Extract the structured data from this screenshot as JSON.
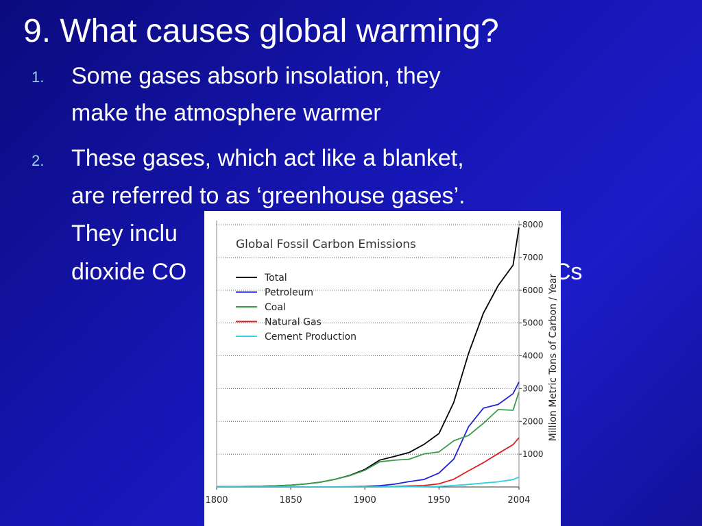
{
  "slide": {
    "title": "9. What causes global warming?",
    "items": [
      {
        "number": "1.",
        "lines": [
          "Some gases absorb insolation, they",
          "make the atmosphere warmer"
        ]
      },
      {
        "number": "2.",
        "lines": [
          "These gases, which act like a blanket,",
          "are referred to as ‘greenhouse gases’.",
          "They inclu",
          "dioxide CO"
        ],
        "fragments": [
          "Cs"
        ]
      }
    ]
  },
  "chart_data": {
    "type": "line",
    "title": "Global Fossil Carbon Emissions",
    "y_label": "Million Metric Tons of Carbon / Year",
    "x": [
      1800,
      1810,
      1820,
      1830,
      1840,
      1850,
      1860,
      1870,
      1880,
      1890,
      1900,
      1910,
      1920,
      1930,
      1940,
      1950,
      1960,
      1970,
      1980,
      1990,
      2000,
      2004
    ],
    "series": [
      {
        "name": "Total",
        "color": "#000000",
        "values": [
          8,
          10,
          14,
          24,
          33,
          54,
          91,
          147,
          236,
          356,
          534,
          819,
          932,
          1053,
          1299,
          1630,
          2577,
          4076,
          5299,
          6143,
          6765,
          7910
        ]
      },
      {
        "name": "Petroleum",
        "color": "#2323d6",
        "values": [
          0,
          0,
          0,
          0,
          0,
          0,
          0,
          1,
          3,
          8,
          16,
          40,
          85,
          166,
          230,
          423,
          850,
          1839,
          2405,
          2517,
          2845,
          3200
        ]
      },
      {
        "name": "Coal",
        "color": "#3a9a4a",
        "values": [
          8,
          10,
          14,
          24,
          33,
          54,
          91,
          146,
          233,
          346,
          510,
          767,
          817,
          845,
          1009,
          1070,
          1410,
          1570,
          1940,
          2360,
          2340,
          2900
        ]
      },
      {
        "name": "Natural Gas",
        "color": "#e02020",
        "values": [
          0,
          0,
          0,
          0,
          0,
          0,
          0,
          0,
          0,
          1,
          3,
          7,
          14,
          32,
          44,
          97,
          235,
          493,
          739,
          1019,
          1290,
          1500
        ]
      },
      {
        "name": "Cement Production",
        "color": "#30d0e0",
        "values": [
          0,
          0,
          0,
          0,
          0,
          0,
          0,
          0,
          0,
          0,
          0,
          0,
          5,
          8,
          12,
          18,
          43,
          78,
          120,
          157,
          226,
          300
        ]
      }
    ],
    "xlim": [
      1800,
      2004
    ],
    "xticks": [
      1800,
      1850,
      1900,
      1950,
      2004
    ],
    "ylim": [
      0,
      8000
    ],
    "yticks": [
      1000,
      2000,
      3000,
      4000,
      5000,
      6000,
      7000,
      8000
    ],
    "grid": true,
    "legend": "upper left"
  }
}
